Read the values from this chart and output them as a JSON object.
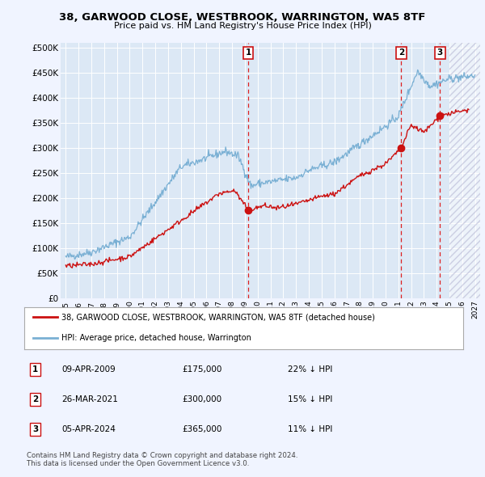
{
  "title": "38, GARWOOD CLOSE, WESTBROOK, WARRINGTON, WA5 8TF",
  "subtitle": "Price paid vs. HM Land Registry's House Price Index (HPI)",
  "ylabel_ticks": [
    "£0",
    "£50K",
    "£100K",
    "£150K",
    "£200K",
    "£250K",
    "£300K",
    "£350K",
    "£400K",
    "£450K",
    "£500K"
  ],
  "ytick_vals": [
    0,
    50000,
    100000,
    150000,
    200000,
    250000,
    300000,
    350000,
    400000,
    450000,
    500000
  ],
  "ylim": [
    0,
    510000
  ],
  "xlim_start": 1994.6,
  "xlim_end": 2027.4,
  "hatch_start": 2025.0,
  "transactions": [
    {
      "date_num": 2009.27,
      "price": 175000,
      "label": "1"
    },
    {
      "date_num": 2021.23,
      "price": 300000,
      "label": "2"
    },
    {
      "date_num": 2024.26,
      "price": 365000,
      "label": "3"
    }
  ],
  "vline_color": "#dd2222",
  "hpi_color": "#7ab0d4",
  "sale_color": "#cc1111",
  "legend_entries": [
    "38, GARWOOD CLOSE, WESTBROOK, WARRINGTON, WA5 8TF (detached house)",
    "HPI: Average price, detached house, Warrington"
  ],
  "table_rows": [
    {
      "label": "1",
      "date": "09-APR-2009",
      "price": "£175,000",
      "hpi": "22% ↓ HPI"
    },
    {
      "label": "2",
      "date": "26-MAR-2021",
      "price": "£300,000",
      "hpi": "15% ↓ HPI"
    },
    {
      "label": "3",
      "date": "05-APR-2024",
      "price": "£365,000",
      "hpi": "11% ↓ HPI"
    }
  ],
  "footnote": "Contains HM Land Registry data © Crown copyright and database right 2024.\nThis data is licensed under the Open Government Licence v3.0.",
  "bg_color": "#f0f4ff",
  "plot_bg": "#dce8f5"
}
